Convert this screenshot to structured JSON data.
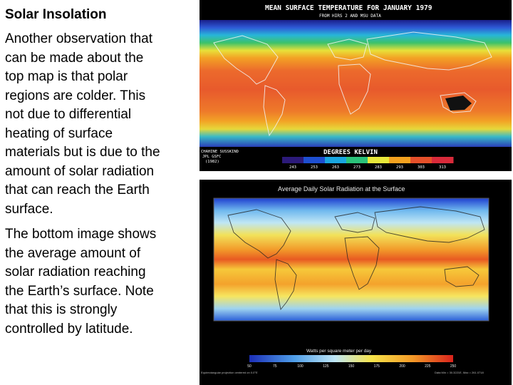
{
  "slide": {
    "title": "Solar Insolation",
    "paragraph1": "Another observation that\ncan be made about the\ntop map is that polar\nregions are colder.  This\nnot due to differential\nheating of surface\nmaterials but is due to the\namount of solar radiation\nthat can reach the Earth\nsurface.",
    "paragraph2": "The bottom image shows\nthe average amount of\nsolar radiation reaching\nthe Earth’s surface.  Note\nthat this is strongly\ncontrolled by latitude."
  },
  "top_map": {
    "title": "MEAN SURFACE TEMPERATURE FOR JANUARY 1979",
    "subtitle": "FROM HIRS 2 AND MSU DATA",
    "credit_1": "CHAHINE  SUSSKIND",
    "credit_2": "JPL    GSFC",
    "credit_3": "(1982)",
    "unit_label": "DEGREES KELVIN",
    "scale_ticks": [
      "243",
      "253",
      "263",
      "273",
      "283",
      "293",
      "303",
      "313"
    ],
    "scale_colors": [
      "#2c1a7a",
      "#1e4fd1",
      "#19a6e0",
      "#2bc27a",
      "#e8e83a",
      "#f4a21f",
      "#e6502a",
      "#d92a3a"
    ]
  },
  "bottom_map": {
    "title": "Average Daily Solar Radiation at the Surface",
    "unit_label": "Watts per square meter per day",
    "scale_ticks": [
      "50",
      "75",
      "100",
      "125",
      "150",
      "175",
      "200",
      "225",
      "250"
    ],
    "footer_left": "Equirectangular projection centered on 0.0°E",
    "footer_right": "Data Min = 30.3221E, Max = 261.0718"
  }
}
